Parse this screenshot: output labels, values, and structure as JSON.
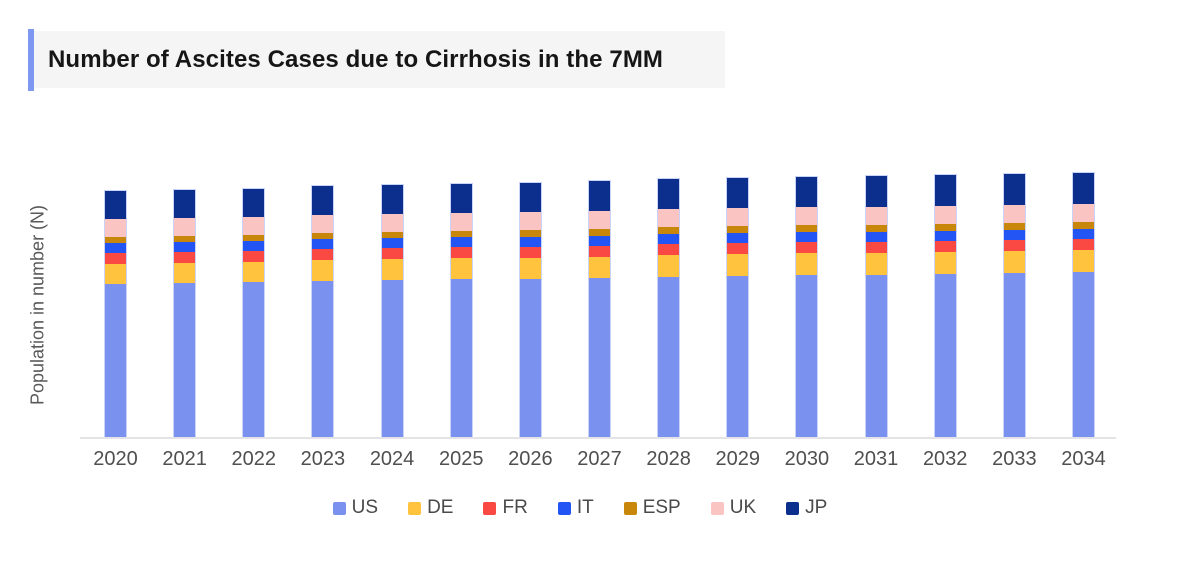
{
  "title": "Number of Ascites Cases due to Cirrhosis in the 7MM",
  "accent_color": "#7e97f2",
  "chart_data": {
    "type": "bar",
    "stacked": true,
    "title": "Number of Ascites Cases due to Cirrhosis in the 7MM",
    "xlabel": "",
    "ylabel": "Population in number (N)",
    "categories": [
      "2020",
      "2021",
      "2022",
      "2023",
      "2024",
      "2025",
      "2026",
      "2027",
      "2028",
      "2029",
      "2030",
      "2031",
      "2032",
      "2033",
      "2034"
    ],
    "series": [
      {
        "name": "US",
        "color": "#7b91f0",
        "values": [
          153,
          154,
          155,
          156,
          157,
          158,
          158,
          159,
          160,
          161,
          162,
          162,
          163,
          164,
          165
        ]
      },
      {
        "name": "DE",
        "color": "#ffc33e",
        "values": [
          20,
          20,
          20,
          21,
          21,
          21,
          21,
          21,
          22,
          22,
          22,
          22,
          22,
          22,
          22
        ]
      },
      {
        "name": "FR",
        "color": "#fa4943",
        "values": [
          11,
          11,
          11,
          11,
          11,
          11,
          11,
          11,
          11,
          11,
          11,
          11,
          11,
          11,
          11
        ]
      },
      {
        "name": "IT",
        "color": "#2255f4",
        "values": [
          10,
          10,
          10,
          10,
          10,
          10,
          10,
          10,
          10,
          10,
          10,
          10,
          10,
          10,
          10
        ]
      },
      {
        "name": "ESP",
        "color": "#c8870a",
        "values": [
          6,
          6,
          6,
          6,
          6,
          6,
          7,
          7,
          7,
          7,
          7,
          7,
          7,
          7,
          7
        ]
      },
      {
        "name": "UK",
        "color": "#fac4c3",
        "values": [
          18,
          18,
          18,
          18,
          18,
          18,
          18,
          18,
          18,
          18,
          18,
          18,
          18,
          18,
          18
        ]
      },
      {
        "name": "JP",
        "color": "#0c2f8e",
        "values": [
          28,
          28,
          28,
          29,
          29,
          29,
          29,
          30,
          30,
          30,
          30,
          31,
          31,
          31,
          31
        ]
      }
    ],
    "values_unit": "relative units (no numeric y-axis ticks shown in figure)",
    "ylim": [
      0,
      280
    ],
    "grid": false,
    "legend_position": "bottom"
  }
}
